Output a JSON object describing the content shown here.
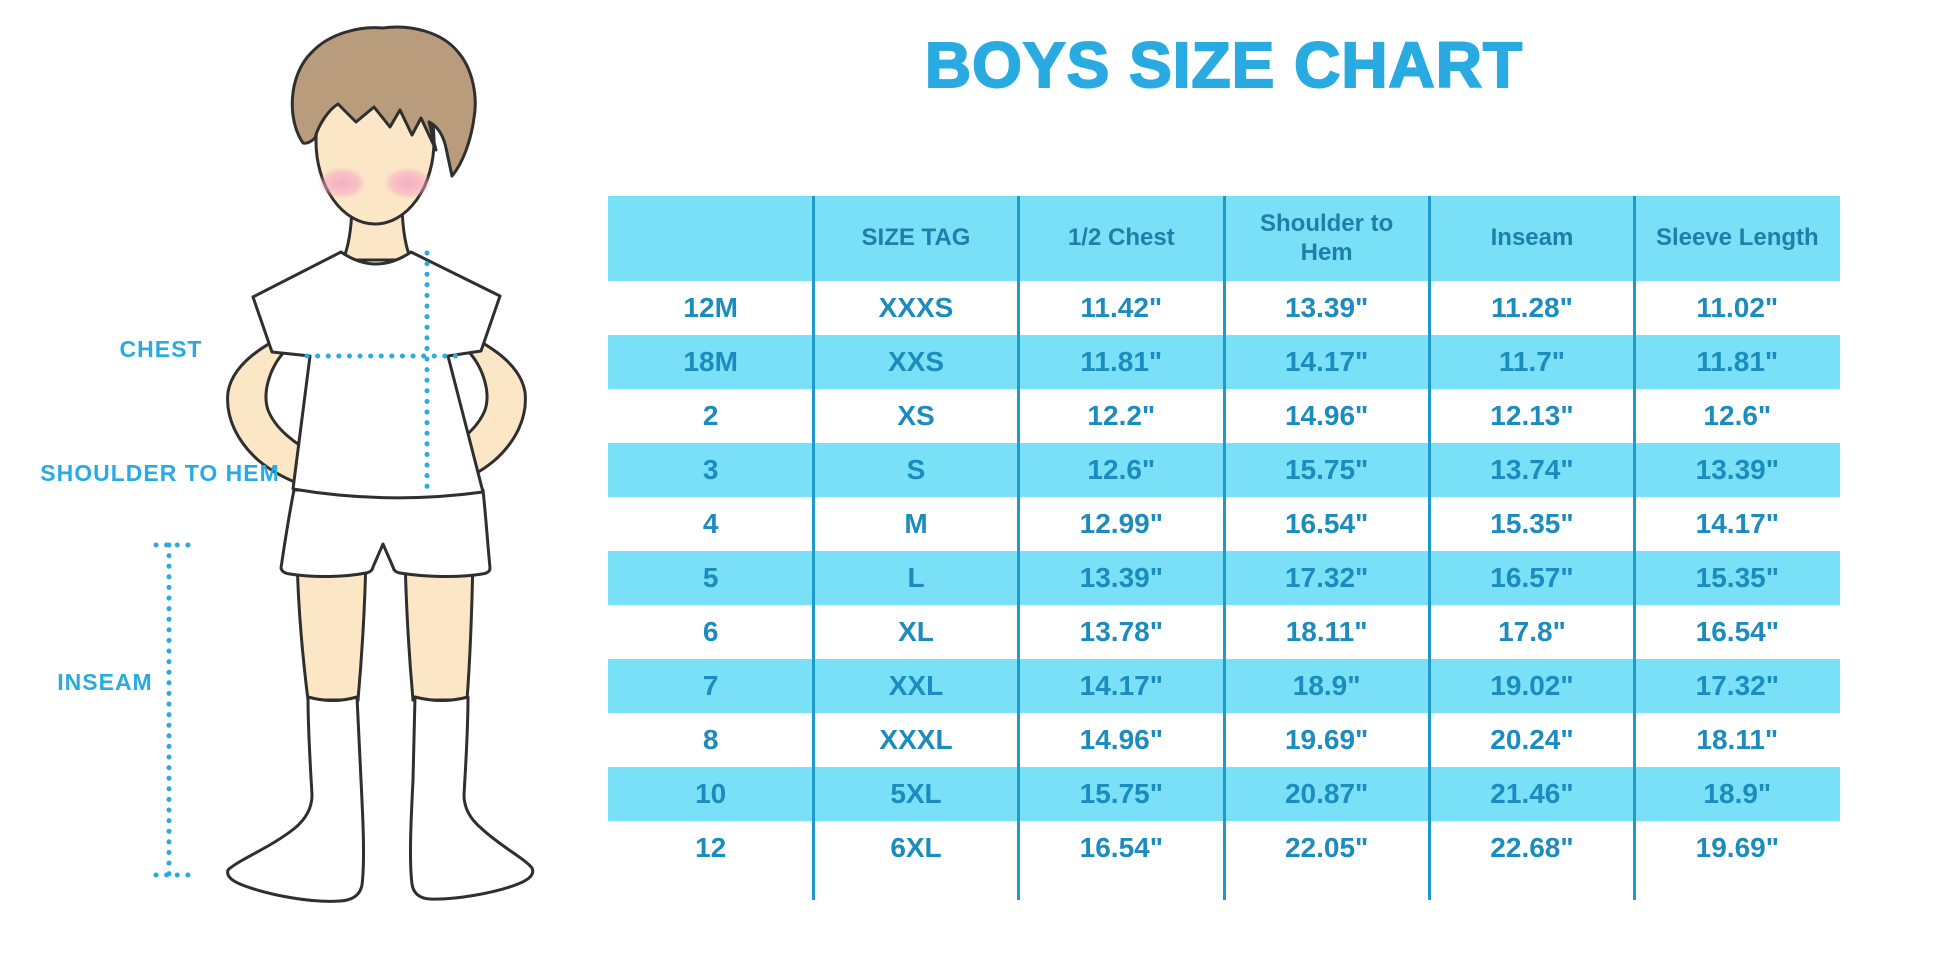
{
  "title": "BOYS SIZE CHART",
  "colors": {
    "accent": "#29ABE2",
    "band": "#79E0F8",
    "separator": "#1D9BCD",
    "header_text": "#1E7FA8",
    "cell_text": "#1C8CBE"
  },
  "diagram": {
    "figure": "boy-in-tshirt-shorts-and-knee-socks",
    "labels": {
      "chest": "CHEST",
      "shoulder_to_hem": "SHOULDER TO HEM",
      "inseam": "INSEAM"
    },
    "measure_lines": [
      "chest-horizontal-dotted-line",
      "shoulder-to-hem-vertical-dotted-line",
      "inseam-vertical-dotted-line"
    ]
  },
  "table": {
    "headers": [
      "",
      "SIZE TAG",
      "1/2 Chest",
      "Shoulder to Hem",
      "Inseam",
      "Sleeve Length"
    ],
    "rows": [
      [
        "12M",
        "XXXS",
        "11.42\"",
        "13.39\"",
        "11.28\"",
        "11.02\""
      ],
      [
        "18M",
        "XXS",
        "11.81\"",
        "14.17\"",
        "11.7\"",
        "11.81\""
      ],
      [
        "2",
        "XS",
        "12.2\"",
        "14.96\"",
        "12.13\"",
        "12.6\""
      ],
      [
        "3",
        "S",
        "12.6\"",
        "15.75\"",
        "13.74\"",
        "13.39\""
      ],
      [
        "4",
        "M",
        "12.99\"",
        "16.54\"",
        "15.35\"",
        "14.17\""
      ],
      [
        "5",
        "L",
        "13.39\"",
        "17.32\"",
        "16.57\"",
        "15.35\""
      ],
      [
        "6",
        "XL",
        "13.78\"",
        "18.11\"",
        "17.8\"",
        "16.54\""
      ],
      [
        "7",
        "XXL",
        "14.17\"",
        "18.9\"",
        "19.02\"",
        "17.32\""
      ],
      [
        "8",
        "XXXL",
        "14.96\"",
        "19.69\"",
        "20.24\"",
        "18.11\""
      ],
      [
        "10",
        "5XL",
        "15.75\"",
        "20.87\"",
        "21.46\"",
        "18.9\""
      ],
      [
        "12",
        "6XL",
        "16.54\"",
        "22.05\"",
        "22.68\"",
        "19.69\""
      ]
    ]
  }
}
